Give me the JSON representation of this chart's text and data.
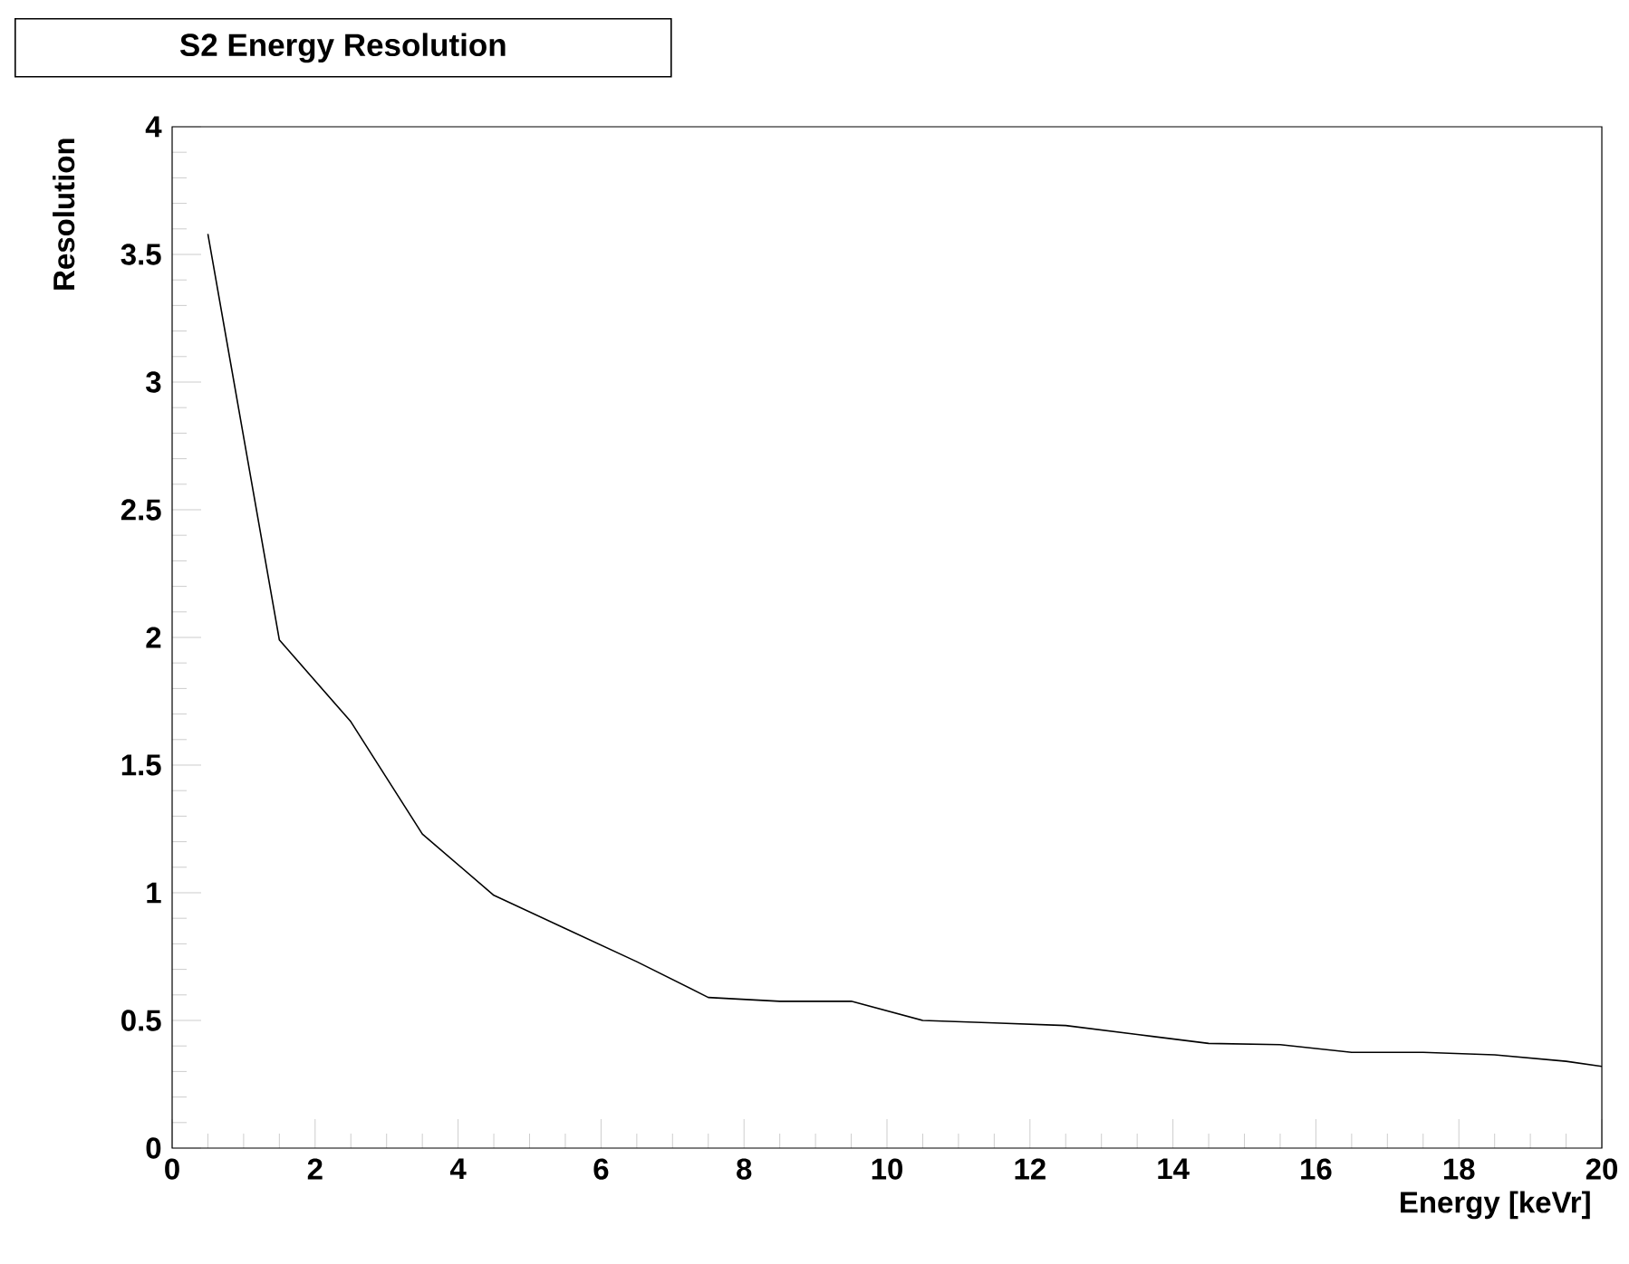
{
  "chart_data": {
    "type": "line",
    "title": "S2 Energy Resolution",
    "xlabel": "Energy [keVr]",
    "ylabel": "Resolution",
    "x": [
      0.5,
      1.5,
      2.5,
      3.5,
      4.5,
      5.5,
      6.5,
      7.5,
      8.5,
      9.5,
      10.5,
      11.5,
      12.5,
      13.5,
      14.5,
      15.5,
      16.5,
      17.5,
      18.5,
      19.5,
      20
    ],
    "series": [
      {
        "color": "#000000",
        "values": [
          3.58,
          1.99,
          1.67,
          1.23,
          0.99,
          0.86,
          0.73,
          0.59,
          0.575,
          0.575,
          0.5,
          0.49,
          0.48,
          0.445,
          0.41,
          0.405,
          0.375,
          0.375,
          0.365,
          0.34,
          0.32
        ]
      }
    ],
    "xlim": [
      0,
      20
    ],
    "xticks": [
      0,
      2,
      4,
      6,
      8,
      10,
      12,
      14,
      16,
      18,
      20
    ],
    "ylim": [
      0,
      4
    ],
    "yticks": [
      0,
      0.5,
      1,
      1.5,
      2,
      2.5,
      3,
      3.5,
      4
    ],
    "grid": false,
    "legend": false,
    "marker": "none",
    "line_style": "solid"
  }
}
